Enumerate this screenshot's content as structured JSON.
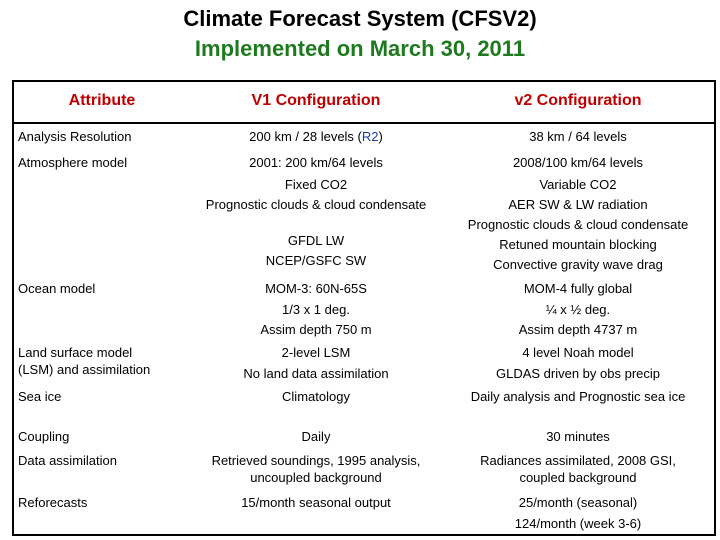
{
  "title": "Climate Forecast System (CFSV2)",
  "subtitle": "Implemented on March 30, 2011",
  "colors": {
    "title": "#000000",
    "subtitle": "#1e7a1e",
    "header": "#c00000",
    "link": "#1a3aa8"
  },
  "headers": [
    "Attribute",
    "V1 Configuration",
    "v2 Configuration"
  ],
  "rows": {
    "analysis": {
      "attr": "Analysis Resolution",
      "v1_pre": "200 km / 28 levels (",
      "v1_link": "R2",
      "v1_post": ")",
      "v2": "38 km / 64 levels"
    },
    "atmos": {
      "attr": "Atmosphere model",
      "v1": [
        "2001: 200 km/64 levels",
        "Fixed CO2",
        "Prognostic clouds & cloud condensate",
        "GFDL LW",
        "NCEP/GSFC SW"
      ],
      "v2": [
        "2008/100 km/64 levels",
        "Variable CO2",
        "AER SW & LW radiation",
        "Prognostic clouds & cloud condensate",
        "Retuned mountain blocking",
        "Convective gravity wave drag"
      ]
    },
    "ocean": {
      "attr": "Ocean model",
      "v1": [
        "MOM-3: 60N-65S",
        "1/3 x 1 deg.",
        "Assim depth 750 m"
      ],
      "v2": [
        "MOM-4 fully global",
        "¼ x ½ deg.",
        "Assim depth 4737 m"
      ]
    },
    "land": {
      "attr": [
        "Land surface model",
        "(LSM) and assimilation"
      ],
      "v1": [
        "2-level LSM",
        "No land data assimilation"
      ],
      "v2": [
        "4 level Noah model",
        "GLDAS driven by obs precip"
      ]
    },
    "seaice": {
      "attr": "Sea ice",
      "v1": "Climatology",
      "v2": "Daily analysis and Prognostic sea ice"
    },
    "coupling": {
      "attr": "Coupling",
      "v1": "Daily",
      "v2": "30 minutes"
    },
    "da": {
      "attr": "Data assimilation",
      "v1": [
        "Retrieved soundings, 1995 analysis,",
        "uncoupled background"
      ],
      "v2": [
        "Radiances assimilated, 2008 GSI,",
        "coupled background"
      ]
    },
    "reforecasts": {
      "attr": "Reforecasts",
      "v1": "15/month seasonal output",
      "v2": [
        "25/month (seasonal)",
        "124/month (week 3-6)"
      ]
    }
  }
}
